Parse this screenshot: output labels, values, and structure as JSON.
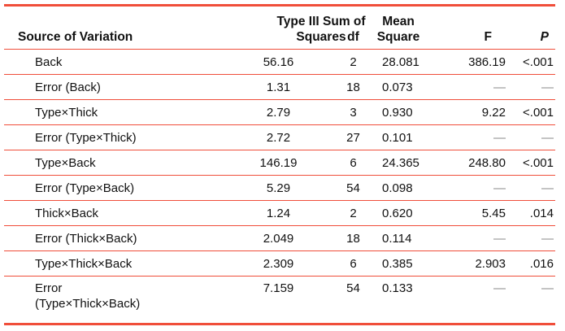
{
  "colors": {
    "rule": "#f04e3a"
  },
  "headers": {
    "source": "Source of Variation",
    "ss": "Type III Sum of Squares",
    "df": "df",
    "ms": "Mean Square",
    "f": "F",
    "p": "P"
  },
  "rows": [
    {
      "source": "Back",
      "ss": "56.16",
      "df": "2",
      "ms": "28.081",
      "f": "386.19",
      "p": "<.001"
    },
    {
      "source": "Error (Back)",
      "ss": "1.31",
      "df": "18",
      "ms": "0.073",
      "f": "—",
      "p": "—"
    },
    {
      "source": "Type×Thick",
      "ss": "2.79",
      "df": "3",
      "ms": "0.930",
      "f": "9.22",
      "p": "<.001"
    },
    {
      "source": "Error (Type×Thick)",
      "ss": "2.72",
      "df": "27",
      "ms": "0.101",
      "f": "—",
      "p": "—"
    },
    {
      "source": "Type×Back",
      "ss": "146.19",
      "df": "6",
      "ms": "24.365",
      "f": "248.80",
      "p": "<.001"
    },
    {
      "source": "Error (Type×Back)",
      "ss": "5.29",
      "df": "54",
      "ms": "0.098",
      "f": "—",
      "p": "—"
    },
    {
      "source": "Thick×Back",
      "ss": "1.24",
      "df": "2",
      "ms": "0.620",
      "f": "5.45",
      "p": ".014"
    },
    {
      "source": "Error (Thick×Back)",
      "ss": "2.049",
      "df": "18",
      "ms": "0.114",
      "f": "—",
      "p": "—"
    },
    {
      "source": "Type×Thick×Back",
      "ss": "2.309",
      "df": "6",
      "ms": "0.385",
      "f": "2.903",
      "p": ".016"
    },
    {
      "source": "Error (Type×Thick×Back)",
      "ss": "7.159",
      "df": "54",
      "ms": "0.133",
      "f": "—",
      "p": "—"
    }
  ]
}
